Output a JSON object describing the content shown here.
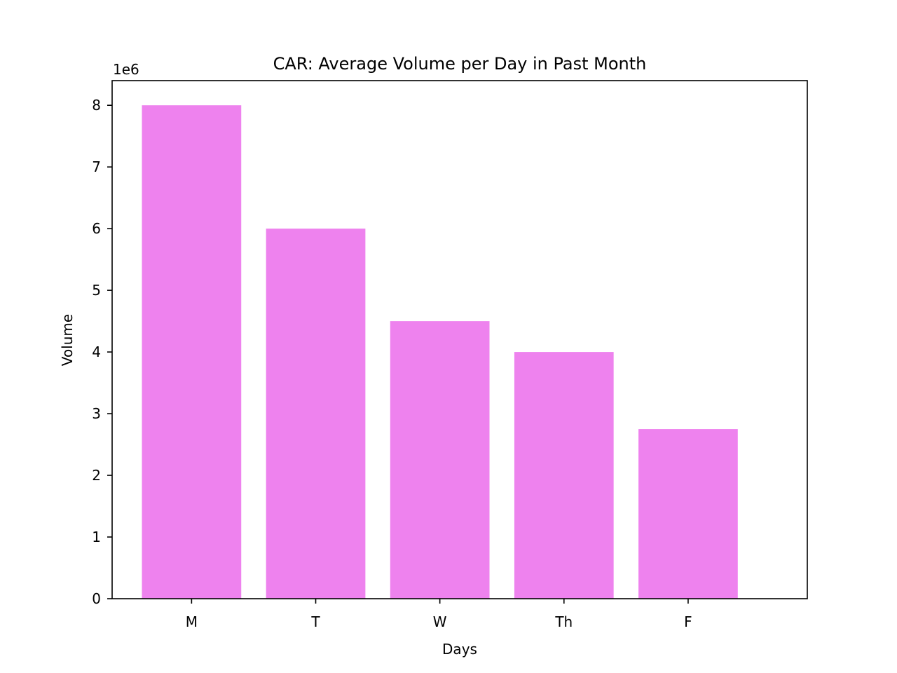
{
  "chart_data": {
    "type": "bar",
    "title": "CAR: Average Volume per Day in Past Month",
    "xlabel": "Days",
    "ylabel": "Volume",
    "y_offset_label": "1e6",
    "categories": [
      "M",
      "T",
      "W",
      "Th",
      "F"
    ],
    "values": [
      8000000,
      6000000,
      4500000,
      4000000,
      2750000
    ],
    "ylim": [
      0,
      8400000
    ],
    "yticks": [
      0,
      1000000,
      2000000,
      3000000,
      4000000,
      5000000,
      6000000,
      7000000,
      8000000
    ],
    "ytick_labels": [
      "0",
      "1",
      "2",
      "3",
      "4",
      "5",
      "6",
      "7",
      "8"
    ],
    "bar_color": "#ee82ee",
    "grid": false,
    "legend": "none"
  }
}
